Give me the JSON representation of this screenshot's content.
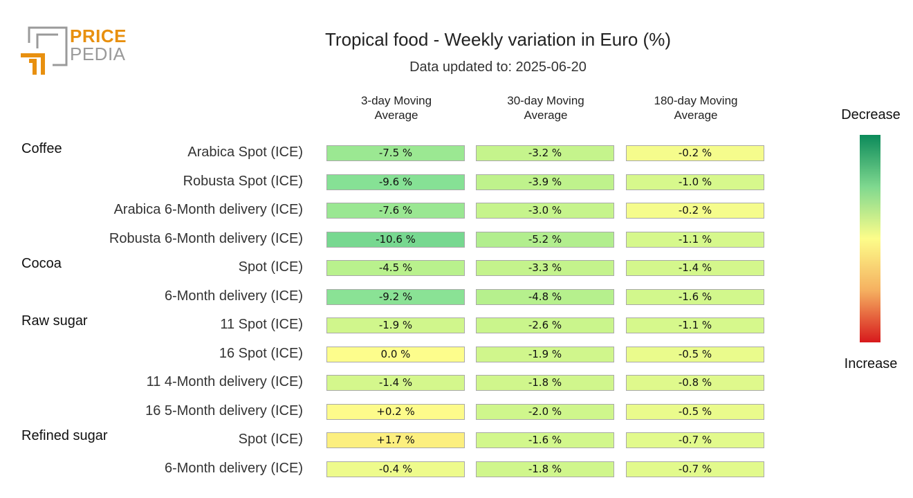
{
  "logo": {
    "line1": "PRICE",
    "line2": "PEDIA",
    "accent": "#e8900f",
    "gray": "#9a9a9a"
  },
  "title": "Tropical food - Weekly variation in Euro (%)",
  "subtitle": "Data updated to: 2025-06-20",
  "legend": {
    "top": "Decrease",
    "bottom": "Increase",
    "colors": [
      "#0b8a5a",
      "#7fd88f",
      "#fdfd8a",
      "#f5b060",
      "#d7191c"
    ]
  },
  "chart_data": {
    "type": "table",
    "columns": [
      {
        "line1": "3-day Moving",
        "line2": "Average"
      },
      {
        "line1": "30-day Moving",
        "line2": "Average"
      },
      {
        "line1": "180-day Moving",
        "line2": "Average"
      }
    ],
    "groups": [
      {
        "name": "Coffee",
        "rows": [
          {
            "label": "Arabica Spot (ICE)",
            "values": [
              -7.5,
              -3.2,
              -0.2
            ],
            "text": [
              "-7.5 %",
              "-3.2 %",
              "-0.2 %"
            ]
          },
          {
            "label": "Robusta Spot (ICE)",
            "values": [
              -9.6,
              -3.9,
              -1.0
            ],
            "text": [
              "-9.6 %",
              "-3.9 %",
              "-1.0 %"
            ]
          },
          {
            "label": "Arabica 6-Month delivery (ICE)",
            "values": [
              -7.6,
              -3.0,
              -0.2
            ],
            "text": [
              "-7.6 %",
              "-3.0 %",
              "-0.2 %"
            ]
          },
          {
            "label": "Robusta 6-Month delivery (ICE)",
            "values": [
              -10.6,
              -5.2,
              -1.1
            ],
            "text": [
              "-10.6 %",
              "-5.2 %",
              "-1.1 %"
            ]
          }
        ]
      },
      {
        "name": "Cocoa",
        "rows": [
          {
            "label": "Spot (ICE)",
            "values": [
              -4.5,
              -3.3,
              -1.4
            ],
            "text": [
              "-4.5 %",
              "-3.3 %",
              "-1.4 %"
            ]
          },
          {
            "label": "6-Month delivery (ICE)",
            "values": [
              -9.2,
              -4.8,
              -1.6
            ],
            "text": [
              "-9.2 %",
              "-4.8 %",
              "-1.6 %"
            ]
          }
        ]
      },
      {
        "name": "Raw sugar",
        "rows": [
          {
            "label": "11 Spot (ICE)",
            "values": [
              -1.9,
              -2.6,
              -1.1
            ],
            "text": [
              "-1.9 %",
              "-2.6 %",
              "-1.1 %"
            ]
          },
          {
            "label": "16 Spot (ICE)",
            "values": [
              0.0,
              -1.9,
              -0.5
            ],
            "text": [
              "0.0 %",
              "-1.9 %",
              "-0.5 %"
            ]
          },
          {
            "label": "11 4-Month delivery (ICE)",
            "values": [
              -1.4,
              -1.8,
              -0.8
            ],
            "text": [
              "-1.4 %",
              "-1.8 %",
              "-0.8 %"
            ]
          },
          {
            "label": "16 5-Month delivery (ICE)",
            "values": [
              0.2,
              -2.0,
              -0.5
            ],
            "text": [
              "+0.2 %",
              "-2.0 %",
              "-0.5 %"
            ]
          }
        ]
      },
      {
        "name": "Refined sugar",
        "rows": [
          {
            "label": "Spot (ICE)",
            "values": [
              1.7,
              -1.6,
              -0.7
            ],
            "text": [
              "+1.7 %",
              "-1.6 %",
              "-0.7 %"
            ]
          },
          {
            "label": "6-Month delivery (ICE)",
            "values": [
              -0.4,
              -1.8,
              -0.7
            ],
            "text": [
              "-0.4 %",
              "-1.8 %",
              "-0.7 %"
            ]
          }
        ]
      }
    ]
  }
}
